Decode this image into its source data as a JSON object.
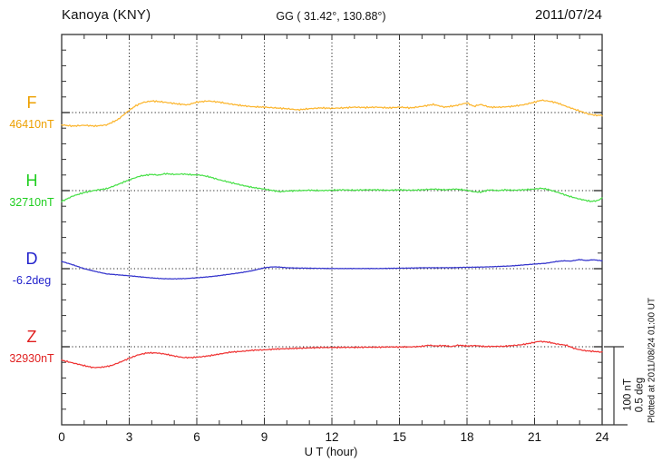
{
  "header": {
    "station": "Kanoya (KNY)",
    "coords": "GG ( 31.42°, 130.88°)",
    "date": "2011/07/24"
  },
  "axis": {
    "x_label": "U T (hour)",
    "x_ticks": [
      0,
      3,
      6,
      9,
      12,
      15,
      18,
      21,
      24
    ]
  },
  "components": [
    {
      "id": "F",
      "letter": "F",
      "value": "46410nT",
      "label_color": "#EDA000",
      "line_color": "#FCB62F"
    },
    {
      "id": "H",
      "letter": "H",
      "value": "32710nT",
      "label_color": "#1FCE1F",
      "line_color": "#49E049"
    },
    {
      "id": "D",
      "letter": "D",
      "value": "-6.2deg",
      "label_color": "#2222CC",
      "line_color": "#3333CC"
    },
    {
      "id": "Z",
      "letter": "Z",
      "value": "32930nT",
      "label_color": "#E01F1F",
      "line_color": "#EF3434"
    }
  ],
  "scale_bar": {
    "labels": [
      "100 nT",
      "0.5 deg"
    ]
  },
  "footer_note": "Plotted at 2011/08/24 01:00 UT",
  "chart_data": {
    "type": "line",
    "title": "Kanoya (KNY) magnetogram 2011/07/24",
    "xlabel": "U T (hour)",
    "x_range": [
      0,
      24
    ],
    "x_ticks": [
      0,
      3,
      6,
      9,
      12,
      15,
      18,
      21,
      24
    ],
    "gridlines_hours": [
      3,
      6,
      9,
      12,
      15,
      18,
      21
    ],
    "scale": {
      "nT_per_bar": 100,
      "deg_per_bar": 0.5,
      "minor_tick_nT": 20,
      "minor_tick_deg": 0.1
    },
    "series": [
      {
        "name": "F",
        "unit": "nT",
        "reference_label": "46410nT",
        "reference_value": 46410,
        "points_hour_delta": [
          [
            0,
            -16
          ],
          [
            0.5,
            -17.5
          ],
          [
            1,
            -16.5
          ],
          [
            1.5,
            -17.5
          ],
          [
            2,
            -16
          ],
          [
            2.5,
            -9
          ],
          [
            3,
            3
          ],
          [
            3.3,
            9
          ],
          [
            3.6,
            13
          ],
          [
            4,
            15
          ],
          [
            4.4,
            14
          ],
          [
            4.8,
            12.5
          ],
          [
            5.2,
            11
          ],
          [
            5.6,
            10
          ],
          [
            6,
            13.5
          ],
          [
            6.5,
            15
          ],
          [
            7,
            13.5
          ],
          [
            7.5,
            11
          ],
          [
            8,
            9
          ],
          [
            8.5,
            7.5
          ],
          [
            9,
            7
          ],
          [
            9.5,
            6
          ],
          [
            10,
            5
          ],
          [
            10.5,
            3.5
          ],
          [
            11,
            5
          ],
          [
            11.5,
            6
          ],
          [
            12,
            5.5
          ],
          [
            12.5,
            6
          ],
          [
            13,
            7
          ],
          [
            13.5,
            6.5
          ],
          [
            14,
            7
          ],
          [
            14.5,
            6
          ],
          [
            15,
            7
          ],
          [
            15.5,
            6
          ],
          [
            16,
            8
          ],
          [
            16.5,
            10.5
          ],
          [
            17,
            7
          ],
          [
            17.5,
            9
          ],
          [
            18,
            12.5
          ],
          [
            18.3,
            8
          ],
          [
            18.6,
            10.5
          ],
          [
            19,
            7
          ],
          [
            19.5,
            7
          ],
          [
            20,
            8
          ],
          [
            20.5,
            10
          ],
          [
            21,
            13.5
          ],
          [
            21.3,
            16
          ],
          [
            21.7,
            14.5
          ],
          [
            22,
            12.5
          ],
          [
            22.5,
            7
          ],
          [
            23,
            2
          ],
          [
            23.4,
            -2
          ],
          [
            23.7,
            -3.5
          ],
          [
            24,
            -3.5
          ]
        ]
      },
      {
        "name": "H",
        "unit": "nT",
        "reference_label": "32710nT",
        "reference_value": 32710,
        "points_hour_delta": [
          [
            0,
            -14
          ],
          [
            0.5,
            -7
          ],
          [
            1,
            -2.5
          ],
          [
            1.5,
            0.5
          ],
          [
            2,
            2.5
          ],
          [
            2.5,
            8
          ],
          [
            3,
            14
          ],
          [
            3.5,
            19
          ],
          [
            4,
            21
          ],
          [
            4.3,
            20
          ],
          [
            4.6,
            22
          ],
          [
            5,
            21
          ],
          [
            5.4,
            21.5
          ],
          [
            5.8,
            20.5
          ],
          [
            6.2,
            20
          ],
          [
            6.6,
            17.5
          ],
          [
            7,
            14
          ],
          [
            7.5,
            10.5
          ],
          [
            8,
            7
          ],
          [
            8.5,
            4
          ],
          [
            9,
            2
          ],
          [
            9.4,
            0
          ],
          [
            9.7,
            -1.5
          ],
          [
            10,
            -0.5
          ],
          [
            10.5,
            0
          ],
          [
            11,
            0.5
          ],
          [
            11.5,
            0
          ],
          [
            12,
            0.5
          ],
          [
            12.5,
            1
          ],
          [
            13,
            0.5
          ],
          [
            13.5,
            1
          ],
          [
            14,
            1
          ],
          [
            14.5,
            0.5
          ],
          [
            15,
            1
          ],
          [
            15.5,
            0.5
          ],
          [
            16,
            1
          ],
          [
            16.5,
            2
          ],
          [
            17,
            1
          ],
          [
            17.5,
            2
          ],
          [
            18,
            0.5
          ],
          [
            18.3,
            -1.5
          ],
          [
            18.6,
            -2
          ],
          [
            19,
            1
          ],
          [
            19.4,
            0
          ],
          [
            19.7,
            1
          ],
          [
            20,
            0.5
          ],
          [
            20.5,
            1
          ],
          [
            21,
            2
          ],
          [
            21.3,
            3
          ],
          [
            21.6,
            1.5
          ],
          [
            22,
            -2
          ],
          [
            22.5,
            -7
          ],
          [
            23,
            -11
          ],
          [
            23.5,
            -14
          ],
          [
            23.8,
            -13
          ],
          [
            24,
            -9.5
          ]
        ]
      },
      {
        "name": "D",
        "unit": "deg",
        "reference_label": "-6.2deg",
        "reference_value": -6.2,
        "points_hour_delta": [
          [
            0,
            0.047
          ],
          [
            0.5,
            0.025
          ],
          [
            1,
            0
          ],
          [
            1.5,
            -0.018
          ],
          [
            2,
            -0.034
          ],
          [
            2.5,
            -0.04
          ],
          [
            3,
            -0.046
          ],
          [
            3.5,
            -0.053
          ],
          [
            4,
            -0.06
          ],
          [
            4.5,
            -0.065
          ],
          [
            5,
            -0.066
          ],
          [
            5.5,
            -0.064
          ],
          [
            6,
            -0.059
          ],
          [
            6.5,
            -0.053
          ],
          [
            7,
            -0.045
          ],
          [
            7.5,
            -0.035
          ],
          [
            8,
            -0.025
          ],
          [
            8.5,
            -0.012
          ],
          [
            9,
            0.006
          ],
          [
            9.4,
            0.012
          ],
          [
            9.7,
            0.01
          ],
          [
            10,
            0.006
          ],
          [
            10.5,
            0.004
          ],
          [
            11,
            0.003
          ],
          [
            11.5,
            0.002
          ],
          [
            12,
            0.001
          ],
          [
            12.5,
            0.001
          ],
          [
            13,
            0.001
          ],
          [
            13.5,
            0.001
          ],
          [
            14,
            0.001
          ],
          [
            14.5,
            0.002
          ],
          [
            15,
            0.003
          ],
          [
            15.5,
            0.004
          ],
          [
            16,
            0.006
          ],
          [
            16.5,
            0.006
          ],
          [
            17,
            0.006
          ],
          [
            17.5,
            0.007
          ],
          [
            18,
            0.009
          ],
          [
            18.5,
            0.01
          ],
          [
            19,
            0.012
          ],
          [
            19.5,
            0.015
          ],
          [
            20,
            0.018
          ],
          [
            20.5,
            0.024
          ],
          [
            21,
            0.03
          ],
          [
            21.5,
            0.035
          ],
          [
            22,
            0.047
          ],
          [
            22.3,
            0.051
          ],
          [
            22.6,
            0.049
          ],
          [
            23,
            0.059
          ],
          [
            23.3,
            0.053
          ],
          [
            23.6,
            0.058
          ],
          [
            24,
            0.051
          ]
        ]
      },
      {
        "name": "Z",
        "unit": "nT",
        "reference_label": "32930nT",
        "reference_value": 32930,
        "points_hour_delta": [
          [
            0,
            -17.5
          ],
          [
            0.5,
            -21
          ],
          [
            1,
            -24.5
          ],
          [
            1.4,
            -27
          ],
          [
            1.8,
            -26.5
          ],
          [
            2.2,
            -24.5
          ],
          [
            2.6,
            -20
          ],
          [
            3,
            -15
          ],
          [
            3.4,
            -10.5
          ],
          [
            3.8,
            -8
          ],
          [
            4.2,
            -8
          ],
          [
            4.6,
            -9.5
          ],
          [
            5,
            -12
          ],
          [
            5.4,
            -14
          ],
          [
            5.8,
            -14
          ],
          [
            6.2,
            -13
          ],
          [
            6.6,
            -11.5
          ],
          [
            7,
            -9.5
          ],
          [
            7.5,
            -7
          ],
          [
            8,
            -6
          ],
          [
            8.5,
            -4.5
          ],
          [
            9,
            -4
          ],
          [
            9.5,
            -3
          ],
          [
            10,
            -2.5
          ],
          [
            10.5,
            -2
          ],
          [
            11,
            -1.5
          ],
          [
            11.5,
            -1
          ],
          [
            12,
            -1
          ],
          [
            12.5,
            -0.8
          ],
          [
            13,
            -0.8
          ],
          [
            13.5,
            -0.6
          ],
          [
            14,
            -0.6
          ],
          [
            14.5,
            -0.3
          ],
          [
            15,
            -0.3
          ],
          [
            15.5,
            -0.2
          ],
          [
            16,
            0.5
          ],
          [
            16.3,
            2
          ],
          [
            16.6,
            1
          ],
          [
            17,
            1.5
          ],
          [
            17.3,
            0.2
          ],
          [
            17.6,
            2
          ],
          [
            18,
            1
          ],
          [
            18.4,
            1.5
          ],
          [
            18.8,
            0.2
          ],
          [
            19.2,
            0.5
          ],
          [
            19.6,
            0.5
          ],
          [
            20,
            1.5
          ],
          [
            20.4,
            2.5
          ],
          [
            20.8,
            4.5
          ],
          [
            21.2,
            7
          ],
          [
            21.6,
            6
          ],
          [
            22,
            3.5
          ],
          [
            22.4,
            2
          ],
          [
            22.8,
            -2.5
          ],
          [
            23.2,
            -5
          ],
          [
            23.6,
            -6
          ],
          [
            24,
            -7
          ]
        ]
      }
    ]
  }
}
